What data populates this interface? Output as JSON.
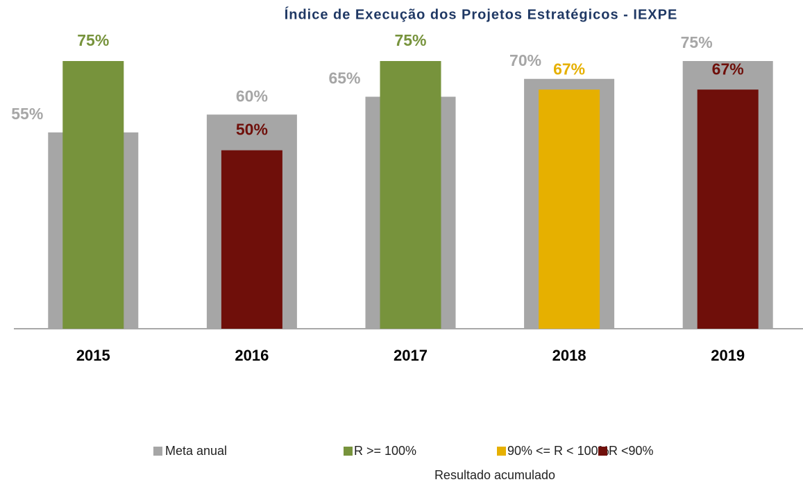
{
  "chart_data": {
    "type": "overlap-bar",
    "title": "Índice de Execução dos Projetos Estratégicos  - IEXPE",
    "categories": [
      "2015",
      "2016",
      "2017",
      "2018",
      "2019"
    ],
    "series": [
      {
        "name": "Meta anual",
        "color": "#a6a6a6",
        "values": [
          55,
          60,
          65,
          70,
          75
        ],
        "value_labels": [
          "55%",
          "60%",
          "65%",
          "70%",
          "75%"
        ]
      },
      {
        "name": "Resultado acumulado",
        "colors": [
          "#77933c",
          "#6f0f0a",
          "#77933c",
          "#e6b000",
          "#6f0f0a"
        ],
        "values": [
          75,
          50,
          75,
          67,
          67
        ],
        "value_labels": [
          "75%",
          "50%",
          "75%",
          "67%",
          "67%"
        ]
      }
    ],
    "classes": [
      {
        "name": "R >= 100%",
        "color": "#77933c"
      },
      {
        "name": "90% <= R < 100%",
        "color": "#e6b000"
      },
      {
        "name": "R <90%",
        "color": "#6f0f0a"
      }
    ],
    "ylim": [
      0,
      75
    ]
  }
}
